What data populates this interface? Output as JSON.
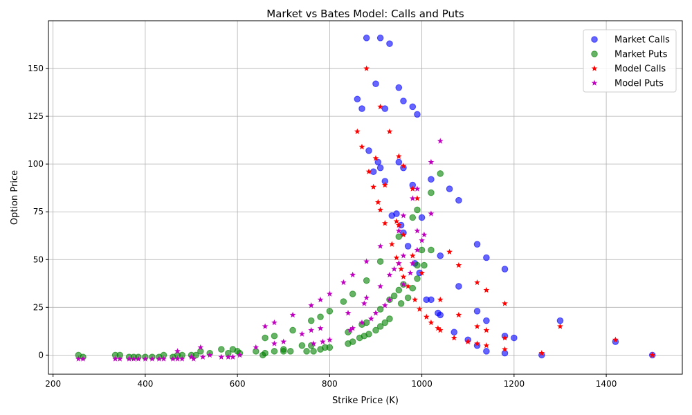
{
  "chart_data": {
    "type": "scatter",
    "title": "Market vs Bates Model: Calls and Puts",
    "xlabel": "Strike Price (K)",
    "ylabel": "Option Price",
    "xlim": [
      190,
      1565
    ],
    "ylim": [
      -10,
      175
    ],
    "xticks": [
      200,
      400,
      600,
      800,
      1000,
      1200,
      1400
    ],
    "yticks": [
      0,
      25,
      50,
      75,
      100,
      125,
      150
    ],
    "grid": true,
    "legend_position": "top-right",
    "series": [
      {
        "name": "Market Calls",
        "marker": "circle",
        "color": "#0000ff",
        "points": [
          [
            880,
            166
          ],
          [
            910,
            166
          ],
          [
            930,
            163
          ],
          [
            900,
            142
          ],
          [
            950,
            140
          ],
          [
            860,
            134
          ],
          [
            960,
            133
          ],
          [
            870,
            129
          ],
          [
            920,
            129
          ],
          [
            980,
            130
          ],
          [
            990,
            126
          ],
          [
            885,
            107
          ],
          [
            905,
            101
          ],
          [
            910,
            98
          ],
          [
            895,
            96
          ],
          [
            950,
            101
          ],
          [
            960,
            98
          ],
          [
            920,
            91
          ],
          [
            980,
            89
          ],
          [
            1020,
            92
          ],
          [
            1060,
            87
          ],
          [
            1080,
            81
          ],
          [
            945,
            74
          ],
          [
            935,
            73
          ],
          [
            1000,
            72
          ],
          [
            955,
            68
          ],
          [
            960,
            64
          ],
          [
            1120,
            58
          ],
          [
            970,
            57
          ],
          [
            1140,
            51
          ],
          [
            1040,
            52
          ],
          [
            1180,
            45
          ],
          [
            995,
            43
          ],
          [
            985,
            48
          ],
          [
            1080,
            36
          ],
          [
            1010,
            29
          ],
          [
            1020,
            29
          ],
          [
            1120,
            23
          ],
          [
            1035,
            22
          ],
          [
            1040,
            21
          ],
          [
            1140,
            18
          ],
          [
            1300,
            18
          ],
          [
            1070,
            12
          ],
          [
            1180,
            10
          ],
          [
            1200,
            9
          ],
          [
            1100,
            8
          ],
          [
            1120,
            5
          ],
          [
            1140,
            2
          ],
          [
            1180,
            1
          ],
          [
            1260,
            0
          ],
          [
            1420,
            7
          ],
          [
            1500,
            0
          ]
        ]
      },
      {
        "name": "Market Puts",
        "marker": "circle",
        "color": "#008000",
        "points": [
          [
            255,
            0
          ],
          [
            265,
            -1
          ],
          [
            335,
            0
          ],
          [
            345,
            0
          ],
          [
            365,
            -1
          ],
          [
            375,
            -1
          ],
          [
            385,
            -1
          ],
          [
            400,
            -1
          ],
          [
            415,
            -1
          ],
          [
            430,
            -1
          ],
          [
            440,
            0
          ],
          [
            460,
            -1
          ],
          [
            470,
            0
          ],
          [
            480,
            0
          ],
          [
            500,
            0
          ],
          [
            510,
            0
          ],
          [
            520,
            2
          ],
          [
            540,
            1
          ],
          [
            565,
            3
          ],
          [
            580,
            1
          ],
          [
            590,
            3
          ],
          [
            600,
            2
          ],
          [
            605,
            1
          ],
          [
            640,
            2
          ],
          [
            655,
            0
          ],
          [
            660,
            1
          ],
          [
            660,
            9
          ],
          [
            680,
            10
          ],
          [
            680,
            2
          ],
          [
            700,
            2
          ],
          [
            700,
            3
          ],
          [
            715,
            2
          ],
          [
            720,
            13
          ],
          [
            740,
            5
          ],
          [
            750,
            2
          ],
          [
            760,
            18
          ],
          [
            760,
            5
          ],
          [
            765,
            2
          ],
          [
            780,
            20
          ],
          [
            780,
            3
          ],
          [
            790,
            4
          ],
          [
            800,
            4
          ],
          [
            800,
            23
          ],
          [
            830,
            28
          ],
          [
            840,
            6
          ],
          [
            840,
            12
          ],
          [
            850,
            32
          ],
          [
            850,
            7
          ],
          [
            865,
            9
          ],
          [
            870,
            16
          ],
          [
            875,
            10
          ],
          [
            880,
            17
          ],
          [
            880,
            39
          ],
          [
            885,
            11
          ],
          [
            900,
            13
          ],
          [
            910,
            15
          ],
          [
            910,
            24
          ],
          [
            910,
            49
          ],
          [
            920,
            17
          ],
          [
            930,
            19
          ],
          [
            930,
            29
          ],
          [
            940,
            31
          ],
          [
            950,
            34
          ],
          [
            950,
            62
          ],
          [
            955,
            27
          ],
          [
            960,
            37
          ],
          [
            970,
            30
          ],
          [
            980,
            35
          ],
          [
            980,
            72
          ],
          [
            990,
            40
          ],
          [
            990,
            47
          ],
          [
            990,
            76
          ],
          [
            1000,
            55
          ],
          [
            1005,
            47
          ],
          [
            1020,
            55
          ],
          [
            1020,
            85
          ],
          [
            1040,
            95
          ]
        ]
      },
      {
        "name": "Model Calls",
        "marker": "star",
        "color": "#ff0000",
        "points": [
          [
            880,
            150
          ],
          [
            910,
            130
          ],
          [
            860,
            117
          ],
          [
            930,
            117
          ],
          [
            870,
            109
          ],
          [
            900,
            103
          ],
          [
            950,
            104
          ],
          [
            960,
            99
          ],
          [
            885,
            96
          ],
          [
            920,
            89
          ],
          [
            980,
            87
          ],
          [
            895,
            88
          ],
          [
            905,
            80
          ],
          [
            990,
            82
          ],
          [
            910,
            76
          ],
          [
            945,
            70
          ],
          [
            950,
            68
          ],
          [
            920,
            69
          ],
          [
            960,
            63
          ],
          [
            935,
            58
          ],
          [
            1060,
            54
          ],
          [
            945,
            51
          ],
          [
            980,
            52
          ],
          [
            950,
            48
          ],
          [
            1080,
            47
          ],
          [
            1000,
            43
          ],
          [
            955,
            45
          ],
          [
            960,
            41
          ],
          [
            970,
            36
          ],
          [
            1120,
            38
          ],
          [
            1140,
            34
          ],
          [
            985,
            29
          ],
          [
            1040,
            29
          ],
          [
            1180,
            27
          ],
          [
            995,
            24
          ],
          [
            1080,
            21
          ],
          [
            1010,
            20
          ],
          [
            1020,
            17
          ],
          [
            1120,
            15
          ],
          [
            1300,
            15
          ],
          [
            1035,
            14
          ],
          [
            1040,
            13
          ],
          [
            1140,
            13
          ],
          [
            1070,
            9
          ],
          [
            1180,
            9
          ],
          [
            1100,
            7
          ],
          [
            1120,
            6
          ],
          [
            1140,
            5
          ],
          [
            1180,
            3
          ],
          [
            1260,
            1
          ],
          [
            1420,
            8
          ],
          [
            1500,
            0
          ]
        ]
      },
      {
        "name": "Model Puts",
        "marker": "star",
        "color": "#bf00bf",
        "points": [
          [
            255,
            -2
          ],
          [
            265,
            -2
          ],
          [
            335,
            -2
          ],
          [
            345,
            -2
          ],
          [
            365,
            -2
          ],
          [
            375,
            -2
          ],
          [
            385,
            -2
          ],
          [
            400,
            -2
          ],
          [
            415,
            -2
          ],
          [
            430,
            -2
          ],
          [
            440,
            -2
          ],
          [
            460,
            -2
          ],
          [
            470,
            -2
          ],
          [
            470,
            2
          ],
          [
            480,
            -2
          ],
          [
            500,
            -1
          ],
          [
            505,
            -2
          ],
          [
            520,
            4
          ],
          [
            525,
            -1
          ],
          [
            540,
            0
          ],
          [
            565,
            -1
          ],
          [
            580,
            -1
          ],
          [
            590,
            -1
          ],
          [
            605,
            0
          ],
          [
            640,
            4
          ],
          [
            660,
            15
          ],
          [
            680,
            17
          ],
          [
            680,
            6
          ],
          [
            700,
            7
          ],
          [
            720,
            21
          ],
          [
            740,
            11
          ],
          [
            760,
            26
          ],
          [
            760,
            13
          ],
          [
            765,
            6
          ],
          [
            780,
            29
          ],
          [
            780,
            14
          ],
          [
            785,
            7
          ],
          [
            800,
            32
          ],
          [
            800,
            8
          ],
          [
            830,
            38
          ],
          [
            840,
            22
          ],
          [
            845,
            13
          ],
          [
            850,
            42
          ],
          [
            850,
            14
          ],
          [
            870,
            17
          ],
          [
            875,
            27
          ],
          [
            880,
            49
          ],
          [
            880,
            30
          ],
          [
            890,
            19
          ],
          [
            900,
            22
          ],
          [
            910,
            57
          ],
          [
            910,
            36
          ],
          [
            920,
            26
          ],
          [
            930,
            29
          ],
          [
            930,
            42
          ],
          [
            940,
            45
          ],
          [
            950,
            48
          ],
          [
            950,
            65
          ],
          [
            960,
            37
          ],
          [
            960,
            52
          ],
          [
            960,
            73
          ],
          [
            975,
            43
          ],
          [
            980,
            48
          ],
          [
            980,
            82
          ],
          [
            990,
            65
          ],
          [
            990,
            87
          ],
          [
            990,
            55
          ],
          [
            1000,
            60
          ],
          [
            1005,
            63
          ],
          [
            1020,
            74
          ],
          [
            1020,
            101
          ],
          [
            1040,
            112
          ]
        ]
      }
    ]
  }
}
